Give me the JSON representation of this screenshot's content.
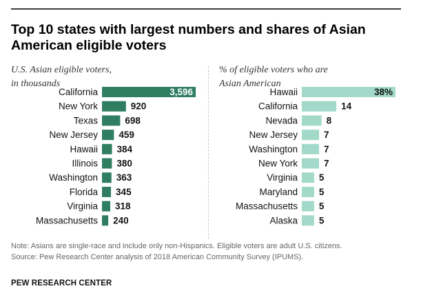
{
  "title": "Top 10 states with largest numbers and shares of Asian American eligible voters",
  "chart_data": [
    {
      "type": "bar",
      "orientation": "horizontal",
      "subtitle": "U.S. Asian eligible voters,\nin thousands",
      "categories": [
        "California",
        "New York",
        "Texas",
        "New Jersey",
        "Hawaii",
        "Illinois",
        "Washington",
        "Florida",
        "Virginia",
        "Massachusetts"
      ],
      "values": [
        3596,
        920,
        698,
        459,
        384,
        380,
        363,
        345,
        318,
        240
      ],
      "labels": [
        "3,596",
        "920",
        "698",
        "459",
        "384",
        "380",
        "363",
        "345",
        "318",
        "240"
      ],
      "xlim": [
        0,
        3596
      ],
      "color": "#2f7e62"
    },
    {
      "type": "bar",
      "orientation": "horizontal",
      "subtitle": "% of eligible voters who are\nAsian American",
      "categories": [
        "Hawaii",
        "California",
        "Nevada",
        "New Jersey",
        "Washington",
        "New York",
        "Virginia",
        "Maryland",
        "Massachusetts",
        "Alaska"
      ],
      "values": [
        38,
        14,
        8,
        7,
        7,
        7,
        5,
        5,
        5,
        5
      ],
      "labels": [
        "38%",
        "14",
        "8",
        "7",
        "7",
        "7",
        "5",
        "5",
        "5",
        "5"
      ],
      "xlim": [
        0,
        38
      ],
      "color": "#a3d9c9"
    }
  ],
  "note": "Note: Asians are single-race and include only non-Hispanics. Eligible voters are adult U.S. citizens.",
  "source": "Source: Pew Research Center analysis of 2018 American Community Survey (IPUMS).",
  "footer": "PEW RESEARCH CENTER"
}
